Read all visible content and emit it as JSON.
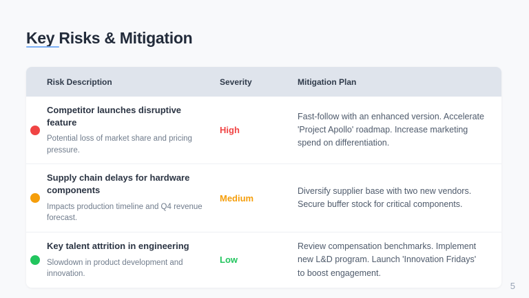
{
  "slide": {
    "title": "Key Risks & Mitigation",
    "page_number": "5"
  },
  "colors": {
    "accent_underline": "#7aaef5",
    "header_band": "#dfe4ec",
    "severity_high": "#f04444",
    "severity_medium": "#f59e0b",
    "severity_low": "#22c55e",
    "page_background": "#f8f9fb",
    "card_background": "#ffffff"
  },
  "table": {
    "headers": {
      "risk": "Risk Description",
      "severity": "Severity",
      "mitigation": "Mitigation Plan"
    },
    "rows": [
      {
        "risk_title": "Competitor launches disruptive feature",
        "risk_detail": "Potential loss of market share and pricing pressure.",
        "severity": "High",
        "severity_color": "#f04444",
        "dot_icon": "status-dot-red",
        "mitigation": "Fast-follow with an enhanced version. Accelerate 'Project Apollo' roadmap. Increase marketing spend on differentiation."
      },
      {
        "risk_title": "Supply chain delays for hardware components",
        "risk_detail": "Impacts production timeline and Q4 revenue forecast.",
        "severity": "Medium",
        "severity_color": "#f59e0b",
        "dot_icon": "status-dot-orange",
        "mitigation": "Diversify supplier base with two new vendors. Secure buffer stock for critical components."
      },
      {
        "risk_title": "Key talent attrition in engineering",
        "risk_detail": "Slowdown in product development and innovation.",
        "severity": "Low",
        "severity_color": "#22c55e",
        "dot_icon": "status-dot-green",
        "mitigation": "Review compensation benchmarks. Implement new L&D program. Launch 'Innovation Fridays' to boost engagement."
      }
    ]
  }
}
